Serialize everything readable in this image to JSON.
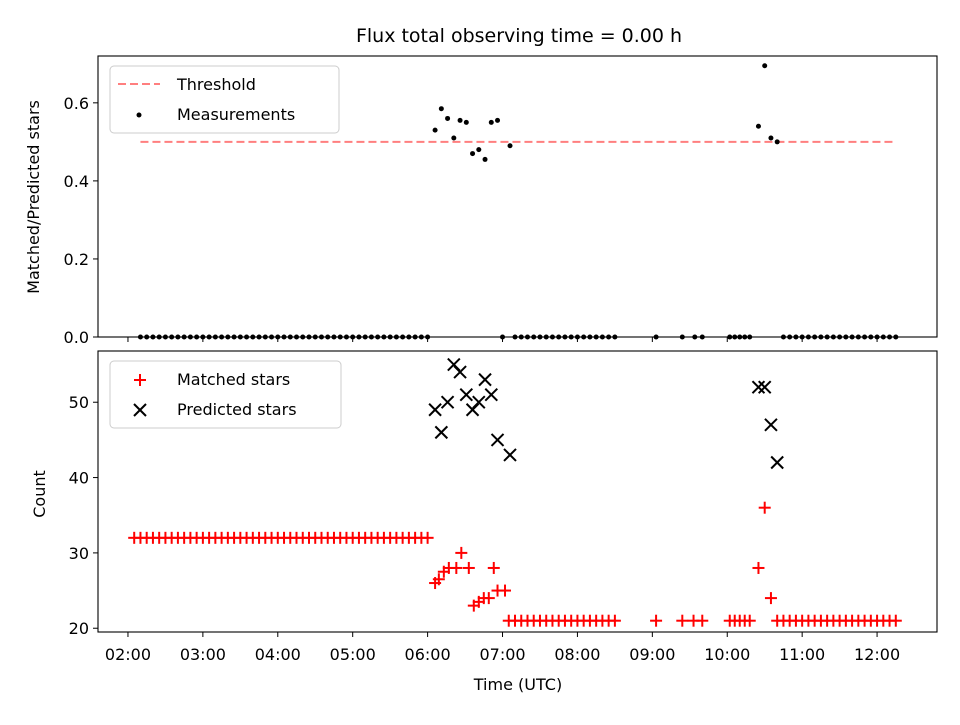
{
  "chart_data": [
    {
      "type": "line",
      "title": "Flux total observing time = 0.00 h",
      "ylabel": "Matched/Predicted stars",
      "ylim": [
        0,
        0.72
      ],
      "yticks": [
        0.0,
        0.2,
        0.4,
        0.6
      ],
      "ytick_labels": [
        "0.0",
        "0.2",
        "0.4",
        "0.6"
      ],
      "legend_position": "upper-left",
      "colors": {
        "threshold": "#ff7f7f",
        "measurements": "#000000"
      },
      "series": [
        {
          "name": "Threshold",
          "style": "dashed-line",
          "x": [
            "02:10",
            "12:13"
          ],
          "y": [
            0.5,
            0.5
          ]
        },
        {
          "name": "Measurements",
          "style": "scatter-dot",
          "points": [
            [
              "02:10",
              0
            ],
            [
              "02:15",
              0
            ],
            [
              "02:20",
              0
            ],
            [
              "02:25",
              0
            ],
            [
              "02:30",
              0
            ],
            [
              "02:35",
              0
            ],
            [
              "02:40",
              0
            ],
            [
              "02:45",
              0
            ],
            [
              "02:50",
              0
            ],
            [
              "02:55",
              0
            ],
            [
              "03:00",
              0
            ],
            [
              "03:05",
              0
            ],
            [
              "03:10",
              0
            ],
            [
              "03:15",
              0
            ],
            [
              "03:20",
              0
            ],
            [
              "03:25",
              0
            ],
            [
              "03:30",
              0
            ],
            [
              "03:35",
              0
            ],
            [
              "03:40",
              0
            ],
            [
              "03:45",
              0
            ],
            [
              "03:50",
              0
            ],
            [
              "03:55",
              0
            ],
            [
              "04:00",
              0
            ],
            [
              "04:05",
              0
            ],
            [
              "04:10",
              0
            ],
            [
              "04:15",
              0
            ],
            [
              "04:20",
              0
            ],
            [
              "04:25",
              0
            ],
            [
              "04:30",
              0
            ],
            [
              "04:35",
              0
            ],
            [
              "04:40",
              0
            ],
            [
              "04:45",
              0
            ],
            [
              "04:50",
              0
            ],
            [
              "04:55",
              0
            ],
            [
              "05:00",
              0
            ],
            [
              "05:05",
              0
            ],
            [
              "05:10",
              0
            ],
            [
              "05:15",
              0
            ],
            [
              "05:20",
              0
            ],
            [
              "05:25",
              0
            ],
            [
              "05:30",
              0
            ],
            [
              "05:35",
              0
            ],
            [
              "05:40",
              0
            ],
            [
              "05:45",
              0
            ],
            [
              "05:50",
              0
            ],
            [
              "05:55",
              0
            ],
            [
              "06:00",
              0
            ],
            [
              "06:06",
              0.53
            ],
            [
              "06:11",
              0.585
            ],
            [
              "06:16",
              0.56
            ],
            [
              "06:21",
              0.51
            ],
            [
              "06:26",
              0.555
            ],
            [
              "06:31",
              0.55
            ],
            [
              "06:36",
              0.47
            ],
            [
              "06:41",
              0.48
            ],
            [
              "06:46",
              0.455
            ],
            [
              "06:51",
              0.55
            ],
            [
              "06:56",
              0.555
            ],
            [
              "07:06",
              0.49
            ],
            [
              "07:00",
              0
            ],
            [
              "07:10",
              0
            ],
            [
              "07:15",
              0
            ],
            [
              "07:20",
              0
            ],
            [
              "07:25",
              0
            ],
            [
              "07:30",
              0
            ],
            [
              "07:35",
              0
            ],
            [
              "07:40",
              0
            ],
            [
              "07:45",
              0
            ],
            [
              "07:50",
              0
            ],
            [
              "07:55",
              0
            ],
            [
              "08:00",
              0
            ],
            [
              "08:05",
              0
            ],
            [
              "08:10",
              0
            ],
            [
              "08:15",
              0
            ],
            [
              "08:20",
              0
            ],
            [
              "08:25",
              0
            ],
            [
              "08:30",
              0
            ],
            [
              "09:03",
              0
            ],
            [
              "09:24",
              0
            ],
            [
              "09:34",
              0
            ],
            [
              "09:40",
              0
            ],
            [
              "10:02",
              0
            ],
            [
              "10:06",
              0
            ],
            [
              "10:10",
              0
            ],
            [
              "10:14",
              0
            ],
            [
              "10:18",
              0
            ],
            [
              "10:25",
              0.54
            ],
            [
              "10:30",
              0.695
            ],
            [
              "10:35",
              0.51
            ],
            [
              "10:40",
              0.5
            ],
            [
              "10:45",
              0
            ],
            [
              "10:50",
              0
            ],
            [
              "10:55",
              0
            ],
            [
              "11:00",
              0
            ],
            [
              "11:05",
              0
            ],
            [
              "11:10",
              0
            ],
            [
              "11:15",
              0
            ],
            [
              "11:20",
              0
            ],
            [
              "11:25",
              0
            ],
            [
              "11:30",
              0
            ],
            [
              "11:35",
              0
            ],
            [
              "11:40",
              0
            ],
            [
              "11:45",
              0
            ],
            [
              "11:50",
              0
            ],
            [
              "11:55",
              0
            ],
            [
              "12:00",
              0
            ],
            [
              "12:05",
              0
            ],
            [
              "12:10",
              0
            ],
            [
              "12:15",
              0
            ]
          ]
        }
      ]
    },
    {
      "type": "scatter",
      "xlabel": "Time (UTC)",
      "ylabel": "Count",
      "ylim": [
        19.5,
        56.8
      ],
      "yticks": [
        20,
        30,
        40,
        50
      ],
      "ytick_labels": [
        "20",
        "30",
        "40",
        "50"
      ],
      "xlim": [
        "01:36",
        "12:48"
      ],
      "xticks": [
        "02:00",
        "03:00",
        "04:00",
        "05:00",
        "06:00",
        "07:00",
        "08:00",
        "09:00",
        "10:00",
        "11:00",
        "12:00"
      ],
      "legend_position": "upper-left",
      "colors": {
        "matched": "#ff0000",
        "predicted": "#000000"
      },
      "series": [
        {
          "name": "Matched stars",
          "marker": "plus",
          "points": [
            [
              "02:05",
              32
            ],
            [
              "02:10",
              32
            ],
            [
              "02:15",
              32
            ],
            [
              "02:20",
              32
            ],
            [
              "02:25",
              32
            ],
            [
              "02:30",
              32
            ],
            [
              "02:35",
              32
            ],
            [
              "02:40",
              32
            ],
            [
              "02:45",
              32
            ],
            [
              "02:50",
              32
            ],
            [
              "02:55",
              32
            ],
            [
              "03:00",
              32
            ],
            [
              "03:05",
              32
            ],
            [
              "03:10",
              32
            ],
            [
              "03:15",
              32
            ],
            [
              "03:20",
              32
            ],
            [
              "03:25",
              32
            ],
            [
              "03:30",
              32
            ],
            [
              "03:35",
              32
            ],
            [
              "03:40",
              32
            ],
            [
              "03:45",
              32
            ],
            [
              "03:50",
              32
            ],
            [
              "03:55",
              32
            ],
            [
              "04:00",
              32
            ],
            [
              "04:05",
              32
            ],
            [
              "04:10",
              32
            ],
            [
              "04:15",
              32
            ],
            [
              "04:20",
              32
            ],
            [
              "04:25",
              32
            ],
            [
              "04:30",
              32
            ],
            [
              "04:35",
              32
            ],
            [
              "04:40",
              32
            ],
            [
              "04:45",
              32
            ],
            [
              "04:50",
              32
            ],
            [
              "04:55",
              32
            ],
            [
              "05:00",
              32
            ],
            [
              "05:05",
              32
            ],
            [
              "05:10",
              32
            ],
            [
              "05:15",
              32
            ],
            [
              "05:20",
              32
            ],
            [
              "05:25",
              32
            ],
            [
              "05:30",
              32
            ],
            [
              "05:35",
              32
            ],
            [
              "05:40",
              32
            ],
            [
              "05:45",
              32
            ],
            [
              "05:50",
              32
            ],
            [
              "05:55",
              32
            ],
            [
              "06:00",
              32
            ],
            [
              "06:06",
              26
            ],
            [
              "06:09",
              26.5
            ],
            [
              "06:13",
              27.5
            ],
            [
              "06:17",
              28
            ],
            [
              "06:23",
              28
            ],
            [
              "06:27",
              30
            ],
            [
              "06:33",
              28
            ],
            [
              "06:37",
              23
            ],
            [
              "06:41",
              23.5
            ],
            [
              "06:45",
              24
            ],
            [
              "06:49",
              24
            ],
            [
              "06:53",
              28
            ],
            [
              "06:56",
              25
            ],
            [
              "07:02",
              25
            ],
            [
              "07:05",
              21
            ],
            [
              "07:10",
              21
            ],
            [
              "07:15",
              21
            ],
            [
              "07:20",
              21
            ],
            [
              "07:25",
              21
            ],
            [
              "07:30",
              21
            ],
            [
              "07:35",
              21
            ],
            [
              "07:40",
              21
            ],
            [
              "07:45",
              21
            ],
            [
              "07:50",
              21
            ],
            [
              "07:55",
              21
            ],
            [
              "08:00",
              21
            ],
            [
              "08:05",
              21
            ],
            [
              "08:10",
              21
            ],
            [
              "08:15",
              21
            ],
            [
              "08:20",
              21
            ],
            [
              "08:25",
              21
            ],
            [
              "08:30",
              21
            ],
            [
              "09:03",
              21
            ],
            [
              "09:24",
              21
            ],
            [
              "09:33",
              21
            ],
            [
              "09:40",
              21
            ],
            [
              "10:02",
              21
            ],
            [
              "10:06",
              21
            ],
            [
              "10:10",
              21
            ],
            [
              "10:14",
              21
            ],
            [
              "10:18",
              21
            ],
            [
              "10:25",
              28
            ],
            [
              "10:30",
              36
            ],
            [
              "10:35",
              24
            ],
            [
              "10:40",
              21
            ],
            [
              "10:45",
              21
            ],
            [
              "10:50",
              21
            ],
            [
              "10:55",
              21
            ],
            [
              "11:00",
              21
            ],
            [
              "11:05",
              21
            ],
            [
              "11:10",
              21
            ],
            [
              "11:15",
              21
            ],
            [
              "11:20",
              21
            ],
            [
              "11:25",
              21
            ],
            [
              "11:30",
              21
            ],
            [
              "11:35",
              21
            ],
            [
              "11:40",
              21
            ],
            [
              "11:45",
              21
            ],
            [
              "11:50",
              21
            ],
            [
              "11:55",
              21
            ],
            [
              "12:00",
              21
            ],
            [
              "12:05",
              21
            ],
            [
              "12:10",
              21
            ],
            [
              "12:15",
              21
            ]
          ]
        },
        {
          "name": "Predicted stars",
          "marker": "x",
          "points": [
            [
              "06:06",
              49
            ],
            [
              "06:11",
              46
            ],
            [
              "06:16",
              50
            ],
            [
              "06:21",
              55
            ],
            [
              "06:26",
              54
            ],
            [
              "06:31",
              51
            ],
            [
              "06:36",
              49
            ],
            [
              "06:41",
              50
            ],
            [
              "06:46",
              53
            ],
            [
              "06:51",
              51
            ],
            [
              "06:56",
              45
            ],
            [
              "07:06",
              43
            ],
            [
              "10:25",
              52
            ],
            [
              "10:30",
              52
            ],
            [
              "10:35",
              47
            ],
            [
              "10:40",
              42
            ]
          ]
        }
      ]
    }
  ]
}
